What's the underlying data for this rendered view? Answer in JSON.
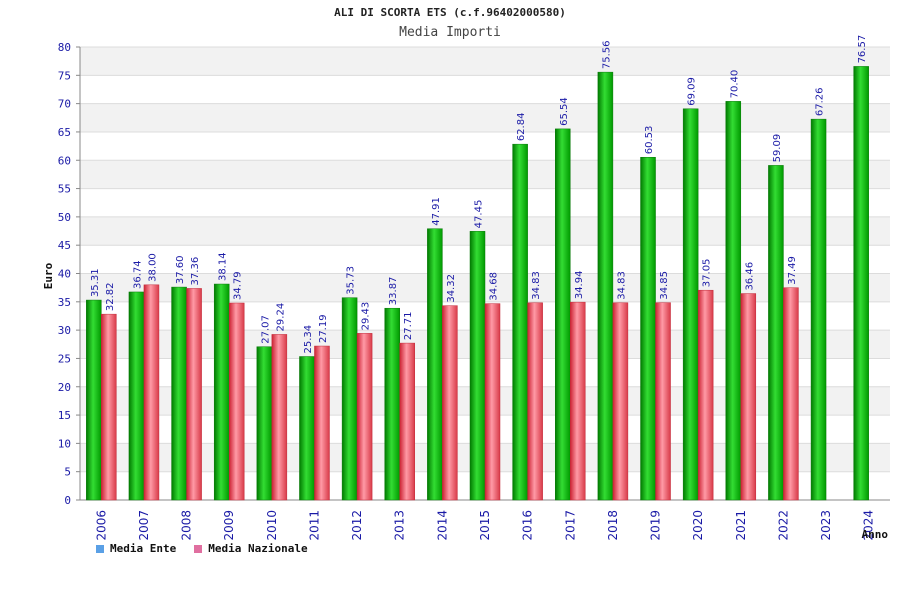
{
  "chart_data": {
    "type": "bar",
    "title": "ALI DI SCORTA ETS (c.f.96402000580)",
    "subtitle": "Media Importi",
    "ylabel": "Euro",
    "xlabel": "Anno",
    "ylim": [
      0,
      80
    ],
    "yticks": [
      0,
      5,
      10,
      15,
      20,
      25,
      30,
      35,
      40,
      45,
      50,
      55,
      60,
      65,
      70,
      75,
      80
    ],
    "categories": [
      "2006",
      "2007",
      "2008",
      "2009",
      "2010",
      "2011",
      "2012",
      "2013",
      "2014",
      "2015",
      "2016",
      "2017",
      "2018",
      "2019",
      "2020",
      "2021",
      "2022",
      "2023",
      "2024"
    ],
    "series": [
      {
        "name": "Media Ente",
        "color": "#00aa00",
        "values": [
          35.31,
          36.74,
          37.6,
          38.14,
          27.07,
          25.34,
          35.73,
          33.87,
          47.91,
          47.45,
          62.84,
          65.54,
          75.56,
          60.53,
          69.09,
          70.4,
          59.09,
          67.26,
          76.57
        ]
      },
      {
        "name": "Media Nazionale",
        "color": "#e0404a",
        "values": [
          32.82,
          38.0,
          37.36,
          34.79,
          29.24,
          27.19,
          29.43,
          27.71,
          34.32,
          34.68,
          34.83,
          34.94,
          34.83,
          34.85,
          37.05,
          36.46,
          37.49,
          null,
          null
        ]
      }
    ],
    "legend": [
      {
        "label": "Media Ente",
        "color": "#5aa0e6"
      },
      {
        "label": "Media Nazionale",
        "color": "#e06fa0"
      }
    ]
  }
}
